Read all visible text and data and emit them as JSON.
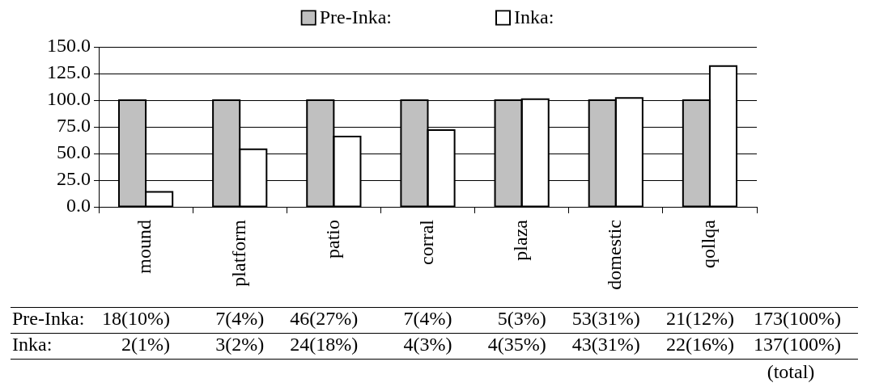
{
  "chart_data": {
    "type": "bar",
    "categories": [
      "mound",
      "platform",
      "patio",
      "corral",
      "plaza",
      "domestic",
      "qollqa"
    ],
    "series": [
      {
        "name": "Pre-Inka:",
        "color": "#c0c0c0",
        "values": [
          100,
          100,
          100,
          100,
          100,
          100,
          100
        ]
      },
      {
        "name": "Inka:",
        "color": "#ffffff",
        "values": [
          14,
          54,
          66,
          72,
          101,
          102,
          132
        ]
      }
    ],
    "ylim": [
      0,
      150
    ],
    "yticks": [
      {
        "value": 0,
        "label": "0.0"
      },
      {
        "value": 25,
        "label": "25.0"
      },
      {
        "value": 50,
        "label": "50.0"
      },
      {
        "value": 75,
        "label": "75.0"
      },
      {
        "value": 100,
        "label": "100.0"
      },
      {
        "value": 125,
        "label": "125.0"
      },
      {
        "value": 150,
        "label": "150.0"
      }
    ],
    "grid": "y",
    "legend": "top",
    "annotations": [
      "18(10%)",
      "7(4%)",
      "46(27%)",
      "7(4%)",
      "5(3%)",
      "53(31%)",
      "21(12%)",
      "173(100%)",
      "2(1%)",
      "3(2%)",
      "24(18%)",
      "4(3%)",
      "4(35%)",
      "43(31%)",
      "22(16%)",
      "137(100%)",
      "(total)"
    ]
  }
}
